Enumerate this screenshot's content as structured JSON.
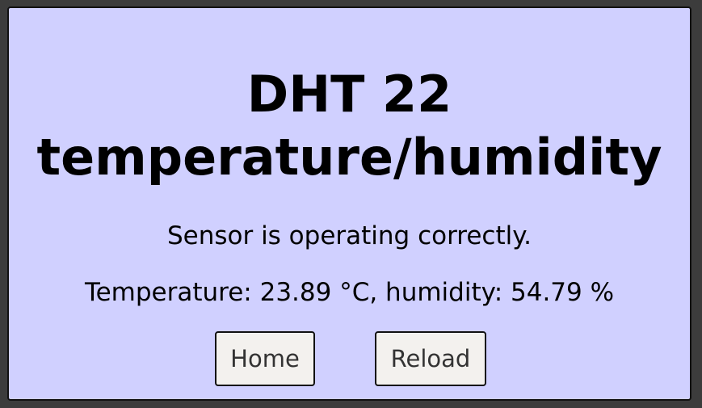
{
  "title": {
    "line1": "DHT 22",
    "line2": "temperature/humidity"
  },
  "status_text": "Sensor is operating correctly.",
  "reading_text": "Temperature: 23.89 °C, humidity: 54.79 %",
  "buttons": {
    "home_label": "Home",
    "reload_label": "Reload"
  },
  "colors": {
    "panel_background": "#d0d0ff",
    "page_background": "#3c3c3c",
    "button_background": "#f3f1ee"
  }
}
